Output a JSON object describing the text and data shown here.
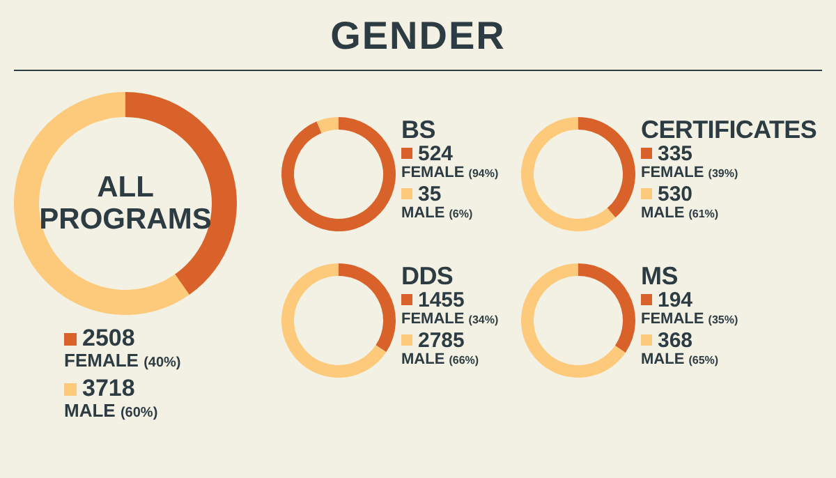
{
  "chart_data": [
    {
      "type": "other",
      "title": "GENDER"
    },
    {
      "type": "donut",
      "title": "ALL PROGRAMS",
      "categories": [
        "FEMALE",
        "MALE"
      ],
      "values": [
        2508,
        3718
      ],
      "colors": [
        "#d9622b",
        "#fdc97a"
      ],
      "data_labels": true,
      "legend": "bottom",
      "annotations": [
        "(40%)",
        "(60%)"
      ]
    },
    {
      "type": "donut",
      "title": "BS",
      "categories": [
        "FEMALE",
        "MALE"
      ],
      "values": [
        524,
        35
      ],
      "colors": [
        "#d9622b",
        "#fdc97a"
      ],
      "data_labels": true,
      "legend": "right",
      "annotations": [
        "(94%)",
        "(6%)"
      ]
    },
    {
      "type": "donut",
      "title": "CERTIFICATES",
      "categories": [
        "FEMALE",
        "MALE"
      ],
      "values": [
        335,
        530
      ],
      "colors": [
        "#d9622b",
        "#fdc97a"
      ],
      "data_labels": true,
      "legend": "right",
      "annotations": [
        "(39%)",
        "(61%)"
      ]
    },
    {
      "type": "donut",
      "title": "DDS",
      "categories": [
        "FEMALE",
        "MALE"
      ],
      "values": [
        1455,
        2785
      ],
      "colors": [
        "#d9622b",
        "#fdc97a"
      ],
      "data_labels": true,
      "legend": "right",
      "annotations": [
        "(34%)",
        "(66%)"
      ]
    },
    {
      "type": "donut",
      "title": "MS",
      "categories": [
        "FEMALE",
        "MALE"
      ],
      "values": [
        194,
        368
      ],
      "colors": [
        "#d9622b",
        "#fdc97a"
      ],
      "data_labels": true,
      "legend": "right",
      "annotations": [
        "(35%)",
        "(65%)"
      ]
    }
  ]
}
